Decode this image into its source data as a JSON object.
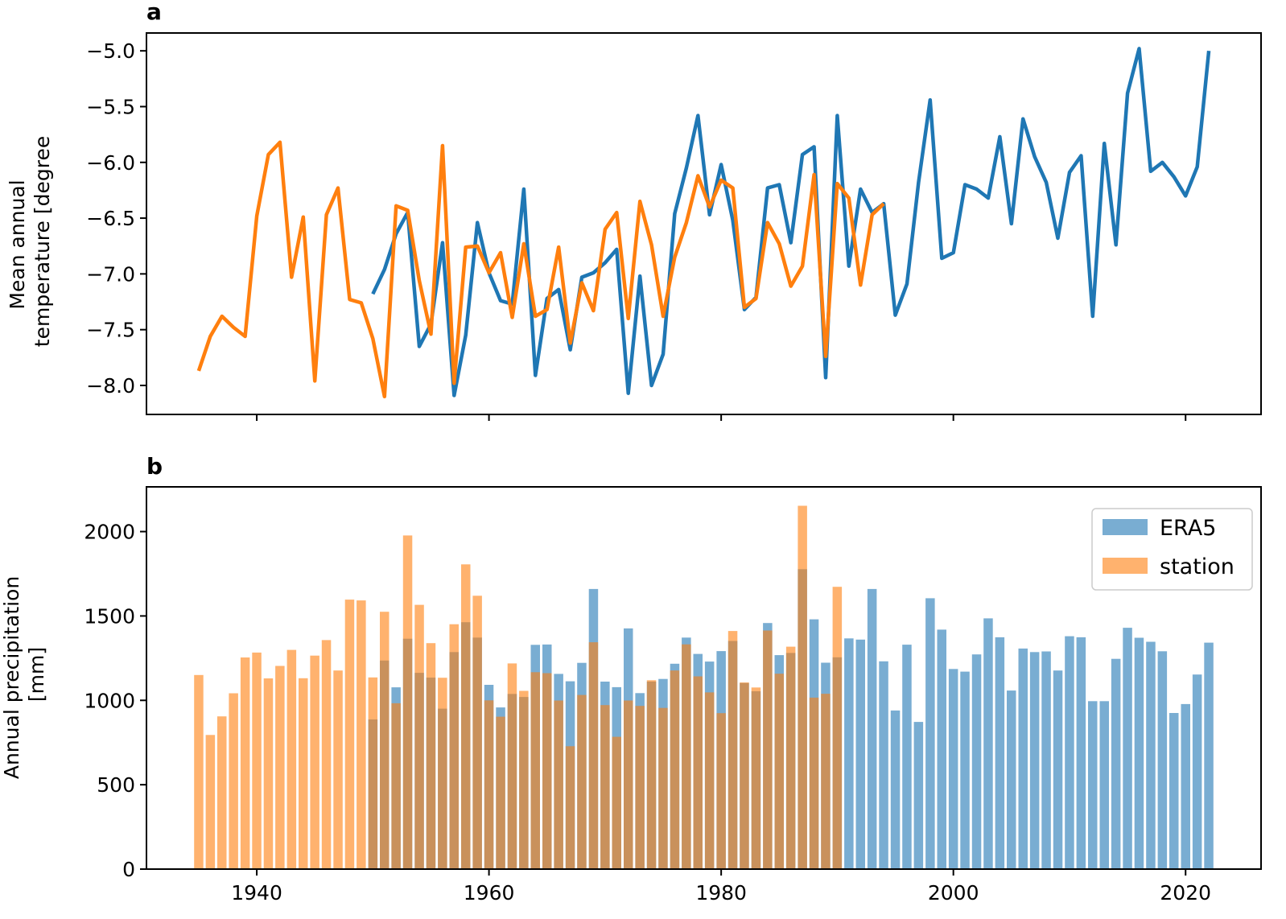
{
  "chart_data": [
    {
      "panel": "a",
      "type": "line",
      "ylabel_lines": [
        "Mean annual",
        "temperature [degree"
      ],
      "xlim": [
        1930.5,
        2026.5
      ],
      "ylim": [
        -8.26,
        -4.84
      ],
      "yticks": [
        -5.0,
        -5.5,
        -6.0,
        -6.5,
        -7.0,
        -7.5,
        -8.0
      ],
      "ytick_labels": [
        "−5.0",
        "−5.5",
        "−6.0",
        "−6.5",
        "−7.0",
        "−7.5",
        "−8.0"
      ],
      "xticks": [
        1940,
        1960,
        1980,
        2000,
        2020
      ],
      "series": [
        {
          "color": "#1f77b4",
          "x": [
            1950,
            1951,
            1952,
            1953,
            1954,
            1955,
            1956,
            1957,
            1958,
            1959,
            1960,
            1961,
            1962,
            1963,
            1964,
            1965,
            1966,
            1967,
            1968,
            1969,
            1970,
            1971,
            1972,
            1973,
            1974,
            1975,
            1976,
            1977,
            1978,
            1979,
            1980,
            1981,
            1982,
            1983,
            1984,
            1985,
            1986,
            1987,
            1988,
            1989,
            1990,
            1991,
            1992,
            1993,
            1994,
            1995,
            1996,
            1997,
            1998,
            1999,
            2000,
            2001,
            2002,
            2003,
            2004,
            2005,
            2006,
            2007,
            2008,
            2009,
            2010,
            2011,
            2012,
            2013,
            2014,
            2015,
            2016,
            2017,
            2018,
            2019,
            2020,
            2021,
            2022
          ],
          "y": [
            -7.18,
            -6.96,
            -6.64,
            -6.45,
            -7.65,
            -7.45,
            -6.72,
            -8.09,
            -7.55,
            -6.54,
            -6.99,
            -7.24,
            -7.27,
            -6.24,
            -7.91,
            -7.22,
            -7.14,
            -7.68,
            -7.03,
            -6.99,
            -6.9,
            -6.78,
            -8.07,
            -7.02,
            -8.0,
            -7.72,
            -6.46,
            -6.05,
            -5.58,
            -6.47,
            -6.02,
            -6.52,
            -7.32,
            -7.21,
            -6.23,
            -6.2,
            -6.72,
            -5.93,
            -5.86,
            -7.93,
            -5.58,
            -6.93,
            -6.24,
            -6.45,
            -6.37,
            -7.37,
            -7.09,
            -6.18,
            -5.44,
            -6.86,
            -6.81,
            -6.2,
            -6.24,
            -6.32,
            -5.77,
            -6.55,
            -5.61,
            -5.95,
            -6.18,
            -6.68,
            -6.09,
            -5.94,
            -7.38,
            -5.83,
            -6.74,
            -5.38,
            -4.98,
            -6.08,
            -6.0,
            -6.13,
            -6.3,
            -6.04,
            -5.0
          ]
        },
        {
          "color": "#ff7f0e",
          "x": [
            1935,
            1936,
            1937,
            1938,
            1939,
            1940,
            1941,
            1942,
            1943,
            1944,
            1945,
            1946,
            1947,
            1948,
            1949,
            1950,
            1951,
            1952,
            1953,
            1954,
            1955,
            1956,
            1957,
            1958,
            1959,
            1960,
            1961,
            1962,
            1963,
            1964,
            1965,
            1966,
            1967,
            1968,
            1969,
            1970,
            1971,
            1972,
            1973,
            1974,
            1975,
            1976,
            1977,
            1978,
            1979,
            1980,
            1981,
            1982,
            1983,
            1984,
            1985,
            1986,
            1987,
            1988,
            1989,
            1990,
            1991,
            1992,
            1993,
            1994
          ],
          "y": [
            -7.87,
            -7.56,
            -7.38,
            -7.48,
            -7.56,
            -6.48,
            -5.93,
            -5.82,
            -7.03,
            -6.49,
            -7.96,
            -6.47,
            -6.23,
            -7.23,
            -7.26,
            -7.58,
            -8.1,
            -6.39,
            -6.43,
            -7.06,
            -7.54,
            -5.85,
            -7.98,
            -6.76,
            -6.75,
            -6.99,
            -6.81,
            -7.39,
            -6.73,
            -7.38,
            -7.32,
            -6.76,
            -7.62,
            -7.08,
            -7.33,
            -6.6,
            -6.45,
            -7.4,
            -6.35,
            -6.74,
            -7.38,
            -6.85,
            -6.54,
            -6.12,
            -6.4,
            -6.16,
            -6.23,
            -7.3,
            -7.22,
            -6.54,
            -6.73,
            -7.11,
            -6.93,
            -6.11,
            -7.74,
            -6.19,
            -6.32,
            -7.1,
            -6.47,
            -6.37
          ]
        }
      ]
    },
    {
      "panel": "b",
      "type": "bar",
      "ylabel_lines": [
        "Annual precipitation",
        "[mm]"
      ],
      "xlim": [
        1930.5,
        2026.5
      ],
      "ylim": [
        0,
        2265
      ],
      "yticks": [
        0,
        500,
        1000,
        1500,
        2000
      ],
      "ytick_labels": [
        "0",
        "500",
        "1000",
        "1500",
        "2000"
      ],
      "xticks": [
        1940,
        1960,
        1980,
        2000,
        2020
      ],
      "xtick_labels": [
        "1940",
        "1960",
        "1980",
        "2000",
        "2020"
      ],
      "legend_position": "upper right",
      "series": [
        {
          "name": "ERA5",
          "color": "#1f77b4",
          "opacity": 0.6,
          "x": [
            1950,
            1951,
            1952,
            1953,
            1954,
            1955,
            1956,
            1957,
            1958,
            1959,
            1960,
            1961,
            1962,
            1963,
            1964,
            1965,
            1966,
            1967,
            1968,
            1969,
            1970,
            1971,
            1972,
            1973,
            1974,
            1975,
            1976,
            1977,
            1978,
            1979,
            1980,
            1981,
            1982,
            1983,
            1984,
            1985,
            1986,
            1987,
            1988,
            1989,
            1990,
            1991,
            1992,
            1993,
            1994,
            1995,
            1996,
            1997,
            1998,
            1999,
            2000,
            2001,
            2002,
            2003,
            2004,
            2005,
            2006,
            2007,
            2008,
            2009,
            2010,
            2011,
            2012,
            2013,
            2014,
            2015,
            2016,
            2017,
            2018,
            2019,
            2020,
            2021,
            2022
          ],
          "values": [
            887,
            1236,
            1077,
            1365,
            1163,
            1135,
            951,
            1286,
            1463,
            1372,
            1092,
            958,
            1038,
            1020,
            1329,
            1331,
            1157,
            1113,
            1222,
            1660,
            1111,
            1078,
            1426,
            1043,
            1111,
            1127,
            1217,
            1372,
            1275,
            1230,
            1292,
            1352,
            1103,
            1054,
            1458,
            1268,
            1281,
            1777,
            1480,
            1223,
            1255,
            1367,
            1360,
            1660,
            1231,
            940,
            1330,
            872,
            1605,
            1419,
            1186,
            1170,
            1272,
            1486,
            1374,
            1058,
            1307,
            1286,
            1290,
            1177,
            1380,
            1374,
            995,
            995,
            1246,
            1430,
            1371,
            1347,
            1291,
            925,
            978,
            1153,
            1342
          ]
        },
        {
          "name": "station",
          "color": "#ff7f0e",
          "opacity": 0.6,
          "x": [
            1935,
            1936,
            1937,
            1938,
            1939,
            1940,
            1941,
            1942,
            1943,
            1944,
            1945,
            1946,
            1947,
            1948,
            1949,
            1950,
            1951,
            1952,
            1953,
            1954,
            1955,
            1956,
            1957,
            1958,
            1959,
            1960,
            1961,
            1962,
            1963,
            1964,
            1965,
            1966,
            1967,
            1968,
            1969,
            1970,
            1971,
            1972,
            1973,
            1974,
            1975,
            1976,
            1977,
            1978,
            1979,
            1980,
            1981,
            1982,
            1983,
            1984,
            1985,
            1986,
            1987,
            1988,
            1989,
            1990
          ],
          "values": [
            1150,
            795,
            905,
            1042,
            1254,
            1283,
            1130,
            1204,
            1299,
            1131,
            1265,
            1357,
            1177,
            1597,
            1592,
            1136,
            1525,
            983,
            1977,
            1566,
            1339,
            1134,
            1451,
            1806,
            1620,
            1000,
            903,
            1219,
            1056,
            1167,
            1161,
            999,
            728,
            1032,
            1344,
            972,
            784,
            999,
            967,
            1119,
            955,
            1177,
            1332,
            1142,
            1047,
            924,
            1411,
            1106,
            1076,
            1414,
            1158,
            1318,
            2153,
            1016,
            1039,
            1673
          ]
        }
      ]
    }
  ]
}
